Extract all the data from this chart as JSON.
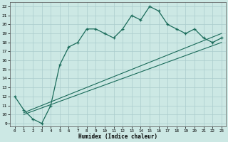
{
  "xlabel": "Humidex (Indice chaleur)",
  "bg_color": "#cce8e4",
  "grid_color": "#aacccc",
  "line_color": "#1a6b5a",
  "xlim": [
    -0.5,
    23.5
  ],
  "ylim": [
    8.7,
    22.5
  ],
  "xticks": [
    0,
    1,
    2,
    3,
    4,
    5,
    6,
    7,
    8,
    9,
    10,
    11,
    12,
    13,
    14,
    15,
    16,
    17,
    18,
    19,
    20,
    21,
    22,
    23
  ],
  "yticks": [
    9,
    10,
    11,
    12,
    13,
    14,
    15,
    16,
    17,
    18,
    19,
    20,
    21,
    22
  ],
  "curve_x": [
    0,
    1,
    2,
    3,
    4,
    5,
    6,
    7,
    8,
    9,
    10,
    11,
    12,
    13,
    14,
    15,
    16,
    17,
    18,
    19,
    20,
    21,
    22,
    23
  ],
  "curve_y": [
    12.0,
    10.5,
    9.5,
    9.0,
    11.0,
    15.5,
    17.5,
    18.0,
    19.5,
    19.5,
    19.0,
    18.5,
    19.5,
    21.0,
    20.5,
    22.0,
    21.5,
    20.0,
    19.5,
    19.0,
    19.5,
    18.5,
    18.0,
    18.5
  ],
  "line1_x": [
    1,
    23
  ],
  "line1_y": [
    10.2,
    19.0
  ],
  "line2_x": [
    1,
    23
  ],
  "line2_y": [
    10.0,
    18.0
  ]
}
